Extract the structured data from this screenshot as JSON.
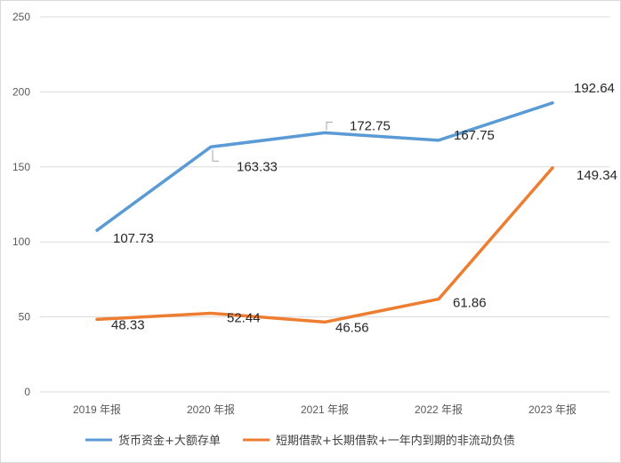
{
  "chart_data": {
    "type": "line",
    "categories": [
      "2019 年报",
      "2020 年报",
      "2021 年报",
      "2022 年报",
      "2023 年报"
    ],
    "series": [
      {
        "name": "货币资金+大额存单",
        "color": "#5B9BD5",
        "values": [
          107.73,
          163.33,
          172.75,
          167.75,
          192.64
        ]
      },
      {
        "name": "短期借款+长期借款+一年内到期的非流动负债",
        "color": "#ED7D31",
        "values": [
          48.33,
          52.44,
          46.56,
          61.86,
          149.34
        ]
      }
    ],
    "labels": [
      [
        "107.73",
        "163.33",
        "172.75",
        "167.75",
        "192.64"
      ],
      [
        "48.33",
        "52.44",
        "46.56",
        "61.86",
        "149.34"
      ]
    ],
    "yticks": [
      "0",
      "50",
      "100",
      "150",
      "200",
      "250"
    ],
    "ylim": [
      0,
      250
    ],
    "grid": true,
    "legend_position": "bottom"
  }
}
